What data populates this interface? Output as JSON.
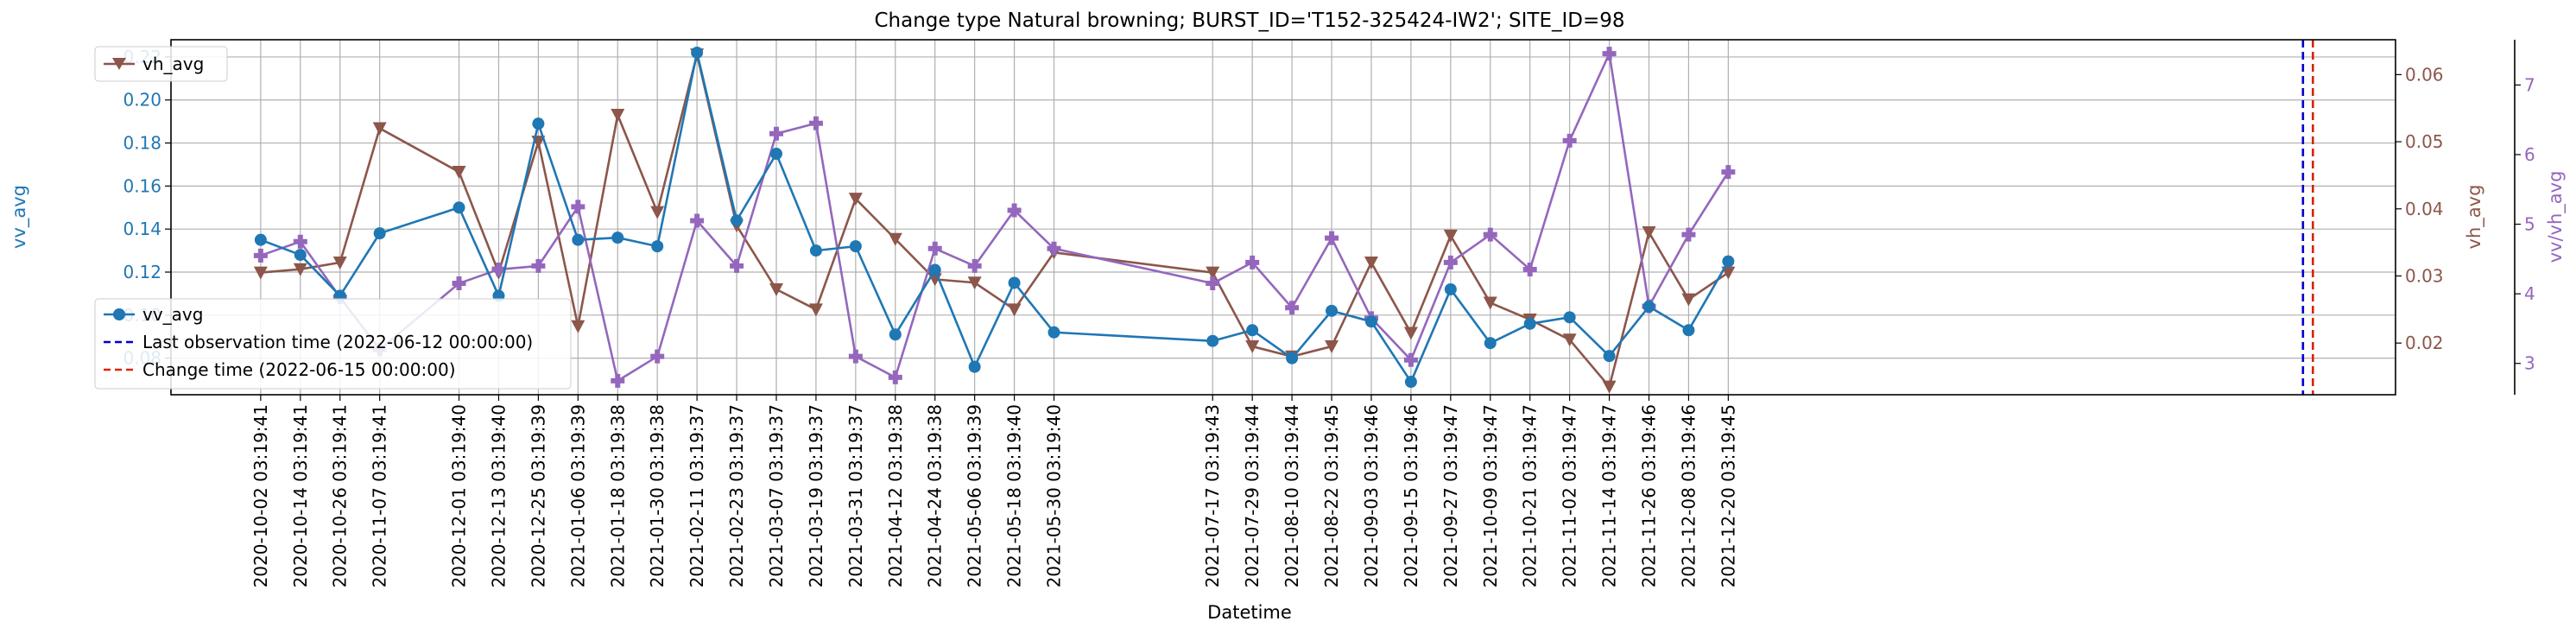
{
  "chart_data": {
    "type": "line",
    "title": "Change type Natural browning; BURST_ID='T152-325424-IW2'; SITE_ID=98",
    "xlabel": "Datetime",
    "x": [
      "2020-10-02 03:19:41",
      "2020-10-14 03:19:41",
      "2020-10-26 03:19:41",
      "2020-11-07 03:19:41",
      "2020-12-01 03:19:40",
      "2020-12-13 03:19:40",
      "2020-12-25 03:19:39",
      "2021-01-06 03:19:39",
      "2021-01-18 03:19:38",
      "2021-01-30 03:19:38",
      "2021-02-11 03:19:37",
      "2021-02-23 03:19:37",
      "2021-03-07 03:19:37",
      "2021-03-19 03:19:37",
      "2021-03-31 03:19:37",
      "2021-04-12 03:19:38",
      "2021-04-24 03:19:38",
      "2021-05-06 03:19:39",
      "2021-05-18 03:19:40",
      "2021-05-30 03:19:40",
      "2021-07-17 03:19:43",
      "2021-07-29 03:19:44",
      "2021-08-10 03:19:44",
      "2021-08-22 03:19:45",
      "2021-09-03 03:19:46",
      "2021-09-15 03:19:46",
      "2021-09-27 03:19:47",
      "2021-10-09 03:19:47",
      "2021-10-21 03:19:47",
      "2021-11-02 03:19:47",
      "2021-11-14 03:19:47",
      "2021-11-26 03:19:46",
      "2021-12-08 03:19:46",
      "2021-12-20 03:19:45"
    ],
    "xlim": [
      "2020-09-05",
      "2022-07-10"
    ],
    "series": [
      {
        "name": "vv_avg",
        "axis": "left",
        "color": "#1f77b4",
        "marker": "circle",
        "values": [
          0.135,
          0.128,
          0.109,
          0.138,
          0.15,
          0.109,
          0.189,
          0.135,
          0.136,
          0.132,
          0.222,
          0.144,
          0.175,
          0.13,
          0.132,
          0.091,
          0.121,
          0.076,
          0.115,
          0.092,
          0.088,
          0.093,
          0.08,
          0.102,
          0.097,
          0.069,
          0.112,
          0.087,
          0.096,
          0.099,
          0.081,
          0.104,
          0.093,
          0.125
        ]
      },
      {
        "name": "vh_avg",
        "axis": "right",
        "color": "#8c564b",
        "marker": "triangle-down",
        "values": [
          0.0305,
          0.031,
          0.032,
          0.052,
          0.0455,
          0.0305,
          0.05,
          0.0225,
          0.054,
          0.0395,
          0.063,
          0.0375,
          0.028,
          0.025,
          0.0415,
          0.0355,
          0.0295,
          0.029,
          0.025,
          0.0335,
          0.0305,
          0.0195,
          0.018,
          0.0195,
          0.032,
          0.0215,
          0.036,
          0.026,
          0.0235,
          0.0205,
          0.0135,
          0.0365,
          0.0265,
          0.0305
        ]
      },
      {
        "name": "vv/vh_avg",
        "axis": "right2",
        "color": "#9467bd",
        "marker": "plus",
        "values": [
          4.55,
          4.75,
          3.95,
          3.2,
          4.15,
          4.35,
          4.4,
          5.25,
          2.75,
          3.1,
          5.05,
          4.4,
          6.3,
          6.45,
          3.1,
          2.8,
          4.65,
          4.4,
          5.2,
          4.65,
          4.15,
          4.45,
          3.8,
          4.8,
          3.65,
          3.05,
          4.45,
          4.85,
          4.35,
          6.2,
          7.45,
          3.82,
          4.85,
          5.75
        ]
      }
    ],
    "axes": {
      "left": {
        "label": "vv_avg",
        "color": "#1f77b4",
        "ylim": [
          0.063,
          0.228
        ],
        "ticks": [
          "0.08",
          "0.10",
          "0.12",
          "0.14",
          "0.16",
          "0.18",
          "0.20",
          "0.22"
        ]
      },
      "right": {
        "label": "vh_avg",
        "color": "#8c564b",
        "ylim": [
          0.0123,
          0.0652
        ],
        "ticks": [
          "0.02",
          "0.03",
          "0.04",
          "0.05",
          "0.06"
        ]
      },
      "right2": {
        "label": "vv/vh_avg",
        "color": "#9467bd",
        "ylim": [
          2.55,
          7.65
        ],
        "ticks": [
          "3",
          "4",
          "5",
          "6",
          "7"
        ]
      }
    },
    "vlines": [
      {
        "label": "Last observation time (2022-06-12 00:00:00)",
        "date": "2022-06-12",
        "color": "#0000cc"
      },
      {
        "label": "Change time (2022-06-15 00:00:00)",
        "date": "2022-06-15",
        "color": "#dd2200"
      }
    ],
    "grid": true,
    "legends": {
      "upper": "top-left",
      "lower": "lower-left"
    }
  }
}
